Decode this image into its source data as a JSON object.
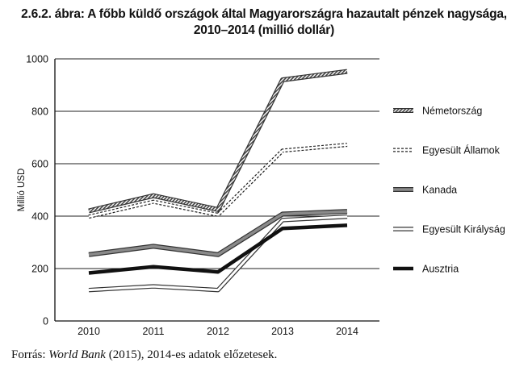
{
  "title_line1": "2.6.2. ábra: A főbb küldő országok által Magyarországra hazautalt pénzek nagysága,",
  "title_line2": "2010–2014 (millió dollár)",
  "source": {
    "prefix": "Forrás: ",
    "italic": "World Bank",
    "suffix": " (2015), 2014-es adatok előzetesek."
  },
  "chart_data": {
    "type": "line",
    "title": "2.6.2. ábra: A főbb küldő országok által Magyarországra hazautalt pénzek nagysága, 2010–2014 (millió dollár)",
    "ylabel": "Millió USD",
    "xlabel": "",
    "categories": [
      "2010",
      "2011",
      "2012",
      "2013",
      "2014"
    ],
    "ylim": [
      0,
      1000
    ],
    "yticks": [
      "0",
      "200",
      "400",
      "600",
      "800",
      "1000"
    ],
    "grid": "horizontal",
    "legend": "right",
    "series": [
      {
        "name": "Németország",
        "values": [
          420,
          478,
          425,
          920,
          952
        ],
        "style": "hatched-band",
        "color": "#555555"
      },
      {
        "name": "Egyesült Államok",
        "values": [
          398,
          455,
          405,
          650,
          672
        ],
        "style": "dashed-double",
        "color": "#222222"
      },
      {
        "name": "Kanada",
        "values": [
          253,
          285,
          253,
          408,
          418
        ],
        "style": "gray-band",
        "color": "#666666"
      },
      {
        "name": "Egyesült Királyság",
        "values": [
          118,
          132,
          118,
          385,
          398
        ],
        "style": "hollow-band",
        "color": "#333333"
      },
      {
        "name": "Ausztria",
        "values": [
          183,
          207,
          187,
          353,
          365
        ],
        "style": "solid-thick",
        "color": "#111111"
      }
    ]
  }
}
